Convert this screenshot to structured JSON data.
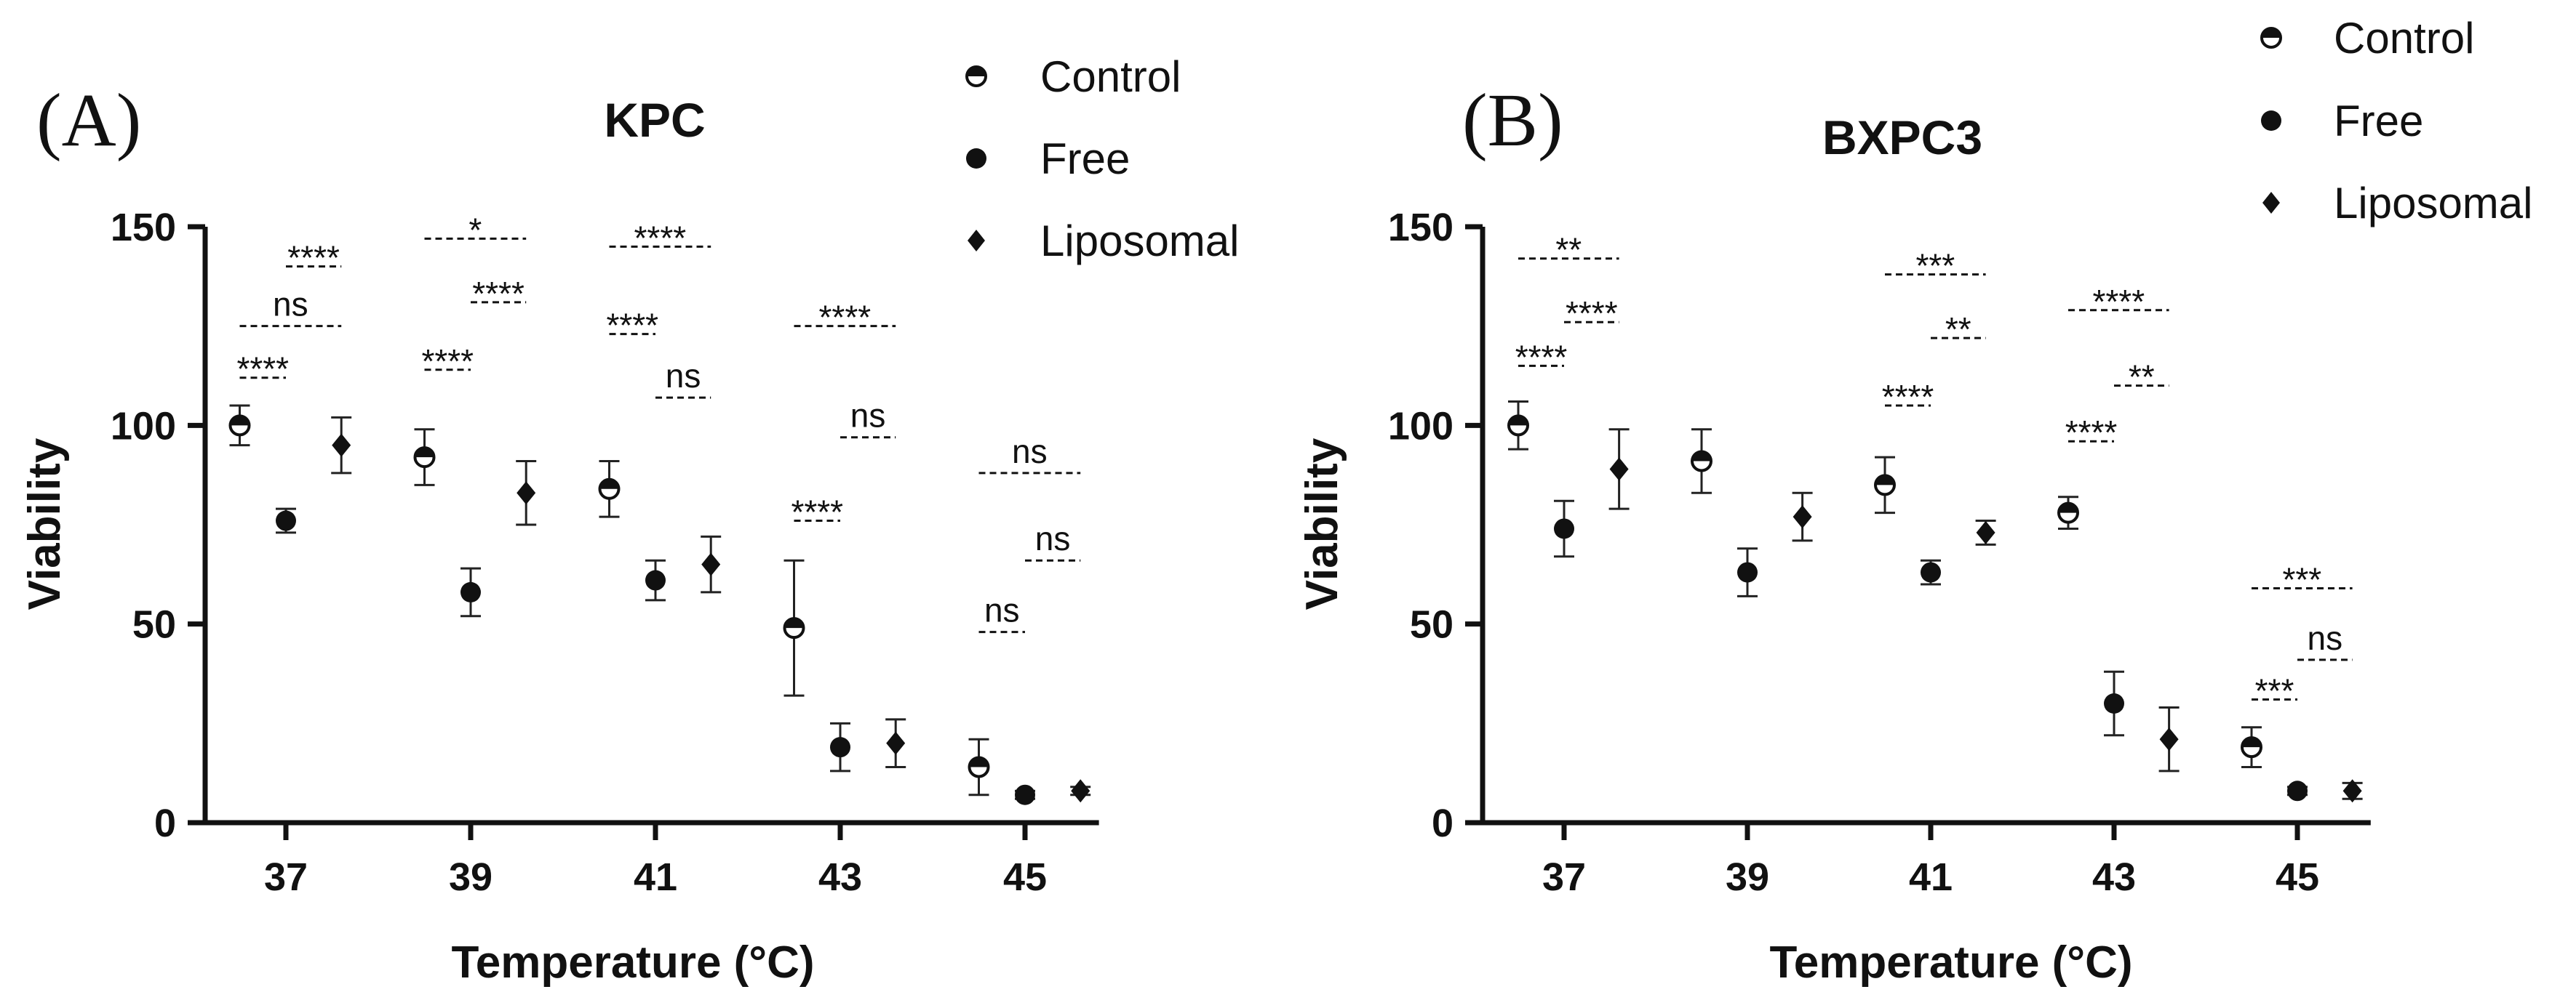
{
  "colors": {
    "ink": "#111111",
    "background": "#ffffff"
  },
  "legend": [
    {
      "label": "Control",
      "marker": "half-filled-circle"
    },
    {
      "label": "Free",
      "marker": "filled-circle"
    },
    {
      "label": "Liposomal",
      "marker": "filled-diamond"
    }
  ],
  "chart_data": [
    {
      "type": "scatter",
      "panel_label": "(A)",
      "title": "KPC",
      "xlabel": "Temperature (°C)",
      "ylabel": "Viability",
      "x_ticks": [
        37,
        39,
        41,
        43,
        45
      ],
      "y_ticks": [
        0,
        50,
        100,
        150
      ],
      "ylim": [
        0,
        150
      ],
      "grid": false,
      "series": [
        {
          "name": "Control",
          "x": [
            37,
            39,
            41,
            43,
            45
          ],
          "values": [
            100,
            92,
            84,
            49,
            14
          ],
          "error": [
            5,
            7,
            7,
            17,
            7
          ]
        },
        {
          "name": "Free",
          "x": [
            37,
            39,
            41,
            43,
            45
          ],
          "values": [
            76,
            58,
            61,
            19,
            7
          ],
          "error": [
            3,
            6,
            5,
            6,
            1
          ]
        },
        {
          "name": "Liposomal",
          "x": [
            37,
            39,
            41,
            43,
            45
          ],
          "values": [
            95,
            83,
            65,
            20,
            8
          ],
          "error": [
            7,
            8,
            7,
            6,
            1
          ]
        }
      ],
      "significance": [
        {
          "label": "****",
          "x1": 36.5,
          "x2": 37.0,
          "y": 112
        },
        {
          "label": "ns",
          "x1": 36.5,
          "x2": 37.6,
          "y": 125
        },
        {
          "label": "****",
          "x1": 37.0,
          "x2": 37.6,
          "y": 140
        },
        {
          "label": "****",
          "x1": 38.5,
          "x2": 39.0,
          "y": 114
        },
        {
          "label": "****",
          "x1": 39.0,
          "x2": 39.6,
          "y": 131
        },
        {
          "label": "*",
          "x1": 38.5,
          "x2": 39.6,
          "y": 147
        },
        {
          "label": "****",
          "x1": 40.5,
          "x2": 41.0,
          "y": 123
        },
        {
          "label": "ns",
          "x1": 41.0,
          "x2": 41.6,
          "y": 107
        },
        {
          "label": "****",
          "x1": 40.5,
          "x2": 41.6,
          "y": 145
        },
        {
          "label": "****",
          "x1": 42.5,
          "x2": 43.0,
          "y": 76
        },
        {
          "label": "ns",
          "x1": 43.0,
          "x2": 43.6,
          "y": 97
        },
        {
          "label": "****",
          "x1": 42.5,
          "x2": 43.6,
          "y": 125
        },
        {
          "label": "ns",
          "x1": 44.5,
          "x2": 45.0,
          "y": 48
        },
        {
          "label": "ns",
          "x1": 45.0,
          "x2": 45.6,
          "y": 66
        },
        {
          "label": "ns",
          "x1": 44.5,
          "x2": 45.6,
          "y": 88
        }
      ]
    },
    {
      "type": "scatter",
      "panel_label": "(B)",
      "title": "BXPC3",
      "xlabel": "Temperature (°C)",
      "ylabel": "Viability",
      "x_ticks": [
        37,
        39,
        41,
        43,
        45
      ],
      "y_ticks": [
        0,
        50,
        100,
        150
      ],
      "ylim": [
        0,
        150
      ],
      "grid": false,
      "series": [
        {
          "name": "Control",
          "x": [
            37,
            39,
            41,
            43,
            45
          ],
          "values": [
            100,
            91,
            85,
            78,
            19
          ],
          "error": [
            6,
            8,
            7,
            4,
            5
          ]
        },
        {
          "name": "Free",
          "x": [
            37,
            39,
            41,
            43,
            45
          ],
          "values": [
            74,
            63,
            63,
            30,
            8
          ],
          "error": [
            7,
            6,
            3,
            8,
            1
          ]
        },
        {
          "name": "Liposomal",
          "x": [
            37,
            39,
            41,
            43,
            45
          ],
          "values": [
            89,
            77,
            73,
            21,
            8
          ],
          "error": [
            10,
            6,
            3,
            8,
            2
          ]
        }
      ],
      "significance": [
        {
          "label": "****",
          "x1": 36.5,
          "x2": 37.0,
          "y": 115
        },
        {
          "label": "****",
          "x1": 37.0,
          "x2": 37.6,
          "y": 126
        },
        {
          "label": "**",
          "x1": 36.5,
          "x2": 37.6,
          "y": 142
        },
        {
          "label": "****",
          "x1": 40.5,
          "x2": 41.0,
          "y": 105
        },
        {
          "label": "**",
          "x1": 41.0,
          "x2": 41.6,
          "y": 122
        },
        {
          "label": "***",
          "x1": 40.5,
          "x2": 41.6,
          "y": 138
        },
        {
          "label": "****",
          "x1": 42.5,
          "x2": 43.0,
          "y": 96
        },
        {
          "label": "**",
          "x1": 43.0,
          "x2": 43.6,
          "y": 110
        },
        {
          "label": "****",
          "x1": 42.5,
          "x2": 43.6,
          "y": 129
        },
        {
          "label": "***",
          "x1": 44.5,
          "x2": 45.0,
          "y": 31
        },
        {
          "label": "ns",
          "x1": 45.0,
          "x2": 45.6,
          "y": 41
        },
        {
          "label": "***",
          "x1": 44.5,
          "x2": 45.6,
          "y": 59
        }
      ]
    }
  ]
}
